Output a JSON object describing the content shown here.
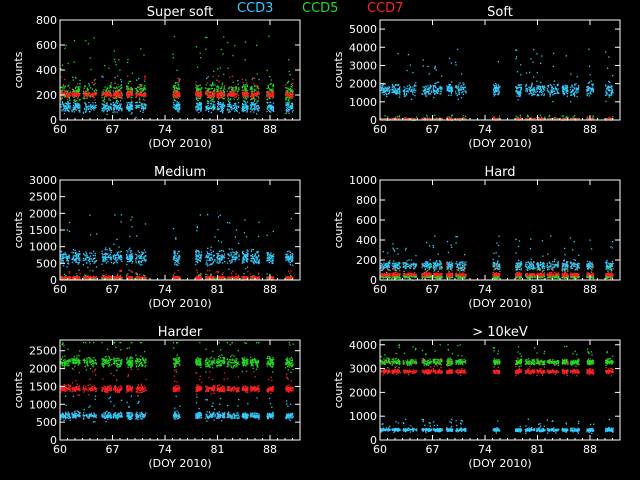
{
  "legend": [
    {
      "name": "CCD3",
      "color": "#33ccff"
    },
    {
      "name": "CCD5",
      "color": "#22dd22"
    },
    {
      "name": "CCD7",
      "color": "#ff2222"
    }
  ],
  "chart_data": [
    {
      "type": "scatter",
      "title": "Super soft",
      "xlabel": "(DOY 2010)",
      "ylabel": "counts",
      "xlim": [
        60,
        92
      ],
      "ylim": [
        0,
        800
      ],
      "xticks": [
        60,
        67,
        74,
        81,
        88
      ],
      "yticks": [
        0,
        200,
        400,
        600,
        800
      ],
      "series": [
        {
          "name": "CCD3",
          "typical_level": 110,
          "spread": 70
        },
        {
          "name": "CCD5",
          "typical_level": 230,
          "spread": 120
        },
        {
          "name": "CCD7",
          "typical_level": 210,
          "spread": 40
        }
      ]
    },
    {
      "type": "scatter",
      "title": "Soft",
      "xlabel": "(DOY 2010)",
      "ylabel": "counts",
      "xlim": [
        60,
        92
      ],
      "ylim": [
        0,
        5500
      ],
      "xticks": [
        60,
        67,
        74,
        81,
        88
      ],
      "yticks": [
        0,
        1000,
        2000,
        3000,
        4000,
        5000
      ],
      "series": [
        {
          "name": "CCD3",
          "typical_level": 1700,
          "spread": 600
        },
        {
          "name": "CCD5",
          "typical_level": 80,
          "spread": 60
        },
        {
          "name": "CCD7",
          "typical_level": 60,
          "spread": 40
        }
      ]
    },
    {
      "type": "scatter",
      "title": "Medium",
      "xlabel": "(DOY 2010)",
      "ylabel": "counts",
      "xlim": [
        60,
        92
      ],
      "ylim": [
        0,
        3000
      ],
      "xticks": [
        60,
        67,
        74,
        81,
        88
      ],
      "yticks": [
        0,
        500,
        1000,
        1500,
        2000,
        2500,
        3000
      ],
      "series": [
        {
          "name": "CCD3",
          "typical_level": 700,
          "spread": 350
        },
        {
          "name": "CCD5",
          "typical_level": 60,
          "spread": 40
        },
        {
          "name": "CCD7",
          "typical_level": 90,
          "spread": 60
        }
      ]
    },
    {
      "type": "scatter",
      "title": "Hard",
      "xlabel": "(DOY 2010)",
      "ylabel": "counts",
      "xlim": [
        60,
        92
      ],
      "ylim": [
        0,
        1000
      ],
      "xticks": [
        60,
        67,
        74,
        81,
        88
      ],
      "yticks": [
        0,
        200,
        400,
        600,
        800,
        1000
      ],
      "series": [
        {
          "name": "CCD3",
          "typical_level": 150,
          "spread": 80
        },
        {
          "name": "CCD5",
          "typical_level": 40,
          "spread": 30
        },
        {
          "name": "CCD7",
          "typical_level": 60,
          "spread": 30
        }
      ]
    },
    {
      "type": "scatter",
      "title": "Harder",
      "xlabel": "(DOY 2010)",
      "ylabel": "counts",
      "xlim": [
        60,
        92
      ],
      "ylim": [
        0,
        2800
      ],
      "xticks": [
        60,
        67,
        74,
        81,
        88
      ],
      "yticks": [
        0,
        500,
        1000,
        1500,
        2000,
        2500
      ],
      "series": [
        {
          "name": "CCD3",
          "typical_level": 700,
          "spread": 150
        },
        {
          "name": "CCD5",
          "typical_level": 2200,
          "spread": 250
        },
        {
          "name": "CCD7",
          "typical_level": 1450,
          "spread": 150
        }
      ]
    },
    {
      "type": "scatter",
      "title": "> 10keV",
      "xlabel": "(DOY 2010)",
      "ylabel": "counts",
      "xlim": [
        60,
        92
      ],
      "ylim": [
        0,
        4200
      ],
      "xticks": [
        60,
        67,
        74,
        81,
        88
      ],
      "yticks": [
        0,
        1000,
        2000,
        3000,
        4000
      ],
      "series": [
        {
          "name": "CCD3",
          "typical_level": 450,
          "spread": 120
        },
        {
          "name": "CCD5",
          "typical_level": 3300,
          "spread": 200
        },
        {
          "name": "CCD7",
          "typical_level": 2900,
          "spread": 150
        }
      ]
    }
  ]
}
